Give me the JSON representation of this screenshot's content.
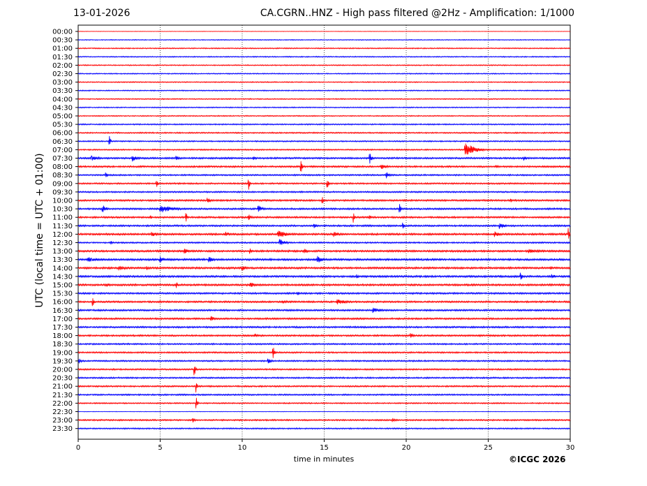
{
  "header": {
    "date": "13-01-2026",
    "title": "CA.CGRN..HNZ - High pass filtered @2Hz - Amplification: 1/1000"
  },
  "footer": {
    "copyright": "©ICGC 2026"
  },
  "colors": {
    "red_trace": "#ff0000",
    "blue_trace": "#0000ff",
    "grid": "#000000"
  },
  "chart_data": {
    "type": "line",
    "title": "CA.CGRN..HNZ - High pass filtered @2Hz - Amplification: 1/1000",
    "xlabel": "time in minutes",
    "ylabel": "UTC (local time = UTC + 01:00)",
    "xlim": [
      0,
      30
    ],
    "x_ticks": [
      "0",
      "5",
      "10",
      "15",
      "20",
      "25",
      "30"
    ],
    "x_grid": "dotted vertical lines at 5, 10, 15, 20, 25",
    "row_labels": [
      "00:00",
      "00:30",
      "01:00",
      "01:30",
      "02:00",
      "02:30",
      "03:00",
      "03:30",
      "04:00",
      "04:30",
      "05:00",
      "05:30",
      "06:00",
      "06:30",
      "07:00",
      "07:30",
      "08:00",
      "08:30",
      "09:00",
      "09:30",
      "10:00",
      "10:30",
      "11:00",
      "11:30",
      "12:00",
      "12:30",
      "13:00",
      "13:30",
      "14:00",
      "14:30",
      "15:00",
      "15:30",
      "16:00",
      "16:30",
      "17:00",
      "17:30",
      "18:00",
      "18:30",
      "19:00",
      "19:30",
      "20:00",
      "20:30",
      "21:00",
      "21:30",
      "22:00",
      "22:30",
      "23:00",
      "23:30"
    ],
    "row_colors": "alternating red / blue starting with red at 00:00",
    "noise_level": [
      0.2,
      0.4,
      0.5,
      0.5,
      0.5,
      0.5,
      0.5,
      0.5,
      0.5,
      0.5,
      0.5,
      0.6,
      0.6,
      0.6,
      0.6,
      0.8,
      0.8,
      0.7,
      0.7,
      0.7,
      0.8,
      0.8,
      0.8,
      0.8,
      0.9,
      0.7,
      0.9,
      0.9,
      0.9,
      0.9,
      0.9,
      0.8,
      0.8,
      0.8,
      0.8,
      0.8,
      0.8,
      0.7,
      0.7,
      0.7,
      0.7,
      0.7,
      0.7,
      0.7,
      0.6,
      0.25,
      0.7,
      0.6
    ],
    "events": [
      {
        "row": 14,
        "minute": 23.6,
        "amplitude": 10,
        "duration": 1.8
      },
      {
        "row": 13,
        "minute": 1.9,
        "amplitude": 9,
        "duration": 0.2
      },
      {
        "row": 15,
        "minute": 0.8,
        "amplitude": 4,
        "duration": 1.5
      },
      {
        "row": 15,
        "minute": 3.3,
        "amplitude": 5,
        "duration": 1.2
      },
      {
        "row": 15,
        "minute": 6.0,
        "amplitude": 4,
        "duration": 0.5
      },
      {
        "row": 15,
        "minute": 10.7,
        "amplitude": 4,
        "duration": 0.5
      },
      {
        "row": 15,
        "minute": 17.8,
        "amplitude": 8,
        "duration": 0.3
      },
      {
        "row": 15,
        "minute": 27.2,
        "amplitude": 4,
        "duration": 0.5
      },
      {
        "row": 16,
        "minute": 13.6,
        "amplitude": 9,
        "duration": 0.2
      },
      {
        "row": 16,
        "minute": 18.5,
        "amplitude": 4,
        "duration": 1.4
      },
      {
        "row": 16,
        "minute": 25.5,
        "amplitude": 3,
        "duration": 0.5
      },
      {
        "row": 17,
        "minute": 1.7,
        "amplitude": 4,
        "duration": 0.4
      },
      {
        "row": 17,
        "minute": 18.8,
        "amplitude": 5,
        "duration": 0.6
      },
      {
        "row": 18,
        "minute": 4.8,
        "amplitude": 6,
        "duration": 0.2
      },
      {
        "row": 18,
        "minute": 10.4,
        "amplitude": 10,
        "duration": 0.2
      },
      {
        "row": 18,
        "minute": 15.2,
        "amplitude": 9,
        "duration": 0.2
      },
      {
        "row": 20,
        "minute": 7.9,
        "amplitude": 4,
        "duration": 0.6
      },
      {
        "row": 20,
        "minute": 14.9,
        "amplitude": 6,
        "duration": 0.2
      },
      {
        "row": 20,
        "minute": 26.4,
        "amplitude": 4,
        "duration": 0.2
      },
      {
        "row": 21,
        "minute": 1.5,
        "amplitude": 6,
        "duration": 0.8
      },
      {
        "row": 21,
        "minute": 5.0,
        "amplitude": 6,
        "duration": 2.5
      },
      {
        "row": 21,
        "minute": 11.0,
        "amplitude": 5,
        "duration": 0.8
      },
      {
        "row": 21,
        "minute": 19.6,
        "amplitude": 10,
        "duration": 0.2
      },
      {
        "row": 22,
        "minute": 4.4,
        "amplitude": 3,
        "duration": 0.3
      },
      {
        "row": 22,
        "minute": 6.6,
        "amplitude": 6,
        "duration": 0.2
      },
      {
        "row": 22,
        "minute": 10.4,
        "amplitude": 5,
        "duration": 0.5
      },
      {
        "row": 22,
        "minute": 16.8,
        "amplitude": 8,
        "duration": 0.2
      },
      {
        "row": 22,
        "minute": 17.8,
        "amplitude": 3,
        "duration": 0.3
      },
      {
        "row": 23,
        "minute": 14.4,
        "amplitude": 4,
        "duration": 0.4
      },
      {
        "row": 23,
        "minute": 19.8,
        "amplitude": 5,
        "duration": 0.3
      },
      {
        "row": 23,
        "minute": 25.7,
        "amplitude": 5,
        "duration": 1.0
      },
      {
        "row": 24,
        "minute": 4.5,
        "amplitude": 4,
        "duration": 1.0
      },
      {
        "row": 24,
        "minute": 9.0,
        "amplitude": 4,
        "duration": 0.8
      },
      {
        "row": 24,
        "minute": 12.2,
        "amplitude": 6,
        "duration": 1.6
      },
      {
        "row": 24,
        "minute": 15.6,
        "amplitude": 4,
        "duration": 1.2
      },
      {
        "row": 24,
        "minute": 25.4,
        "amplitude": 4,
        "duration": 1.2
      },
      {
        "row": 24,
        "minute": 29.9,
        "amplitude": 9,
        "duration": 0.2
      },
      {
        "row": 25,
        "minute": 2.0,
        "amplitude": 3,
        "duration": 0.4
      },
      {
        "row": 25,
        "minute": 12.3,
        "amplitude": 5,
        "duration": 1.2
      },
      {
        "row": 26,
        "minute": 6.5,
        "amplitude": 4,
        "duration": 1.0
      },
      {
        "row": 26,
        "minute": 10.5,
        "amplitude": 4,
        "duration": 0.3
      },
      {
        "row": 26,
        "minute": 13.8,
        "amplitude": 4,
        "duration": 0.6
      },
      {
        "row": 26,
        "minute": 27.5,
        "amplitude": 3,
        "duration": 2.4
      },
      {
        "row": 27,
        "minute": 0.6,
        "amplitude": 4,
        "duration": 1.8
      },
      {
        "row": 27,
        "minute": 5.0,
        "amplitude": 5,
        "duration": 0.8
      },
      {
        "row": 27,
        "minute": 8.0,
        "amplitude": 4,
        "duration": 1.0
      },
      {
        "row": 27,
        "minute": 14.6,
        "amplitude": 6,
        "duration": 0.8
      },
      {
        "row": 28,
        "minute": 2.5,
        "amplitude": 4,
        "duration": 1.2
      },
      {
        "row": 28,
        "minute": 4.2,
        "amplitude": 3,
        "duration": 0.5
      },
      {
        "row": 28,
        "minute": 10.0,
        "amplitude": 4,
        "duration": 0.8
      },
      {
        "row": 28,
        "minute": 28.8,
        "amplitude": 4,
        "duration": 0.4
      },
      {
        "row": 29,
        "minute": 17.0,
        "amplitude": 4,
        "duration": 0.4
      },
      {
        "row": 29,
        "minute": 27.0,
        "amplitude": 8,
        "duration": 0.2
      },
      {
        "row": 29,
        "minute": 28.9,
        "amplitude": 4,
        "duration": 0.6
      },
      {
        "row": 30,
        "minute": 1.8,
        "amplitude": 3,
        "duration": 0.6
      },
      {
        "row": 30,
        "minute": 10.5,
        "amplitude": 4,
        "duration": 1.4
      },
      {
        "row": 30,
        "minute": 6.0,
        "amplitude": 5,
        "duration": 0.2
      },
      {
        "row": 31,
        "minute": 13.4,
        "amplitude": 3,
        "duration": 0.4
      },
      {
        "row": 32,
        "minute": 0.9,
        "amplitude": 8,
        "duration": 0.2
      },
      {
        "row": 32,
        "minute": 12.5,
        "amplitude": 3,
        "duration": 1.2
      },
      {
        "row": 32,
        "minute": 15.8,
        "amplitude": 4,
        "duration": 2.0
      },
      {
        "row": 33,
        "minute": 18.0,
        "amplitude": 4,
        "duration": 1.6
      },
      {
        "row": 34,
        "minute": 8.1,
        "amplitude": 4,
        "duration": 0.7
      },
      {
        "row": 36,
        "minute": 10.8,
        "amplitude": 3,
        "duration": 0.4
      },
      {
        "row": 36,
        "minute": 20.3,
        "amplitude": 5,
        "duration": 0.4
      },
      {
        "row": 38,
        "minute": 11.9,
        "amplitude": 10,
        "duration": 0.2
      },
      {
        "row": 39,
        "minute": 0.1,
        "amplitude": 4,
        "duration": 0.3
      },
      {
        "row": 39,
        "minute": 11.6,
        "amplitude": 4,
        "duration": 0.6
      },
      {
        "row": 40,
        "minute": 7.1,
        "amplitude": 9,
        "duration": 0.2
      },
      {
        "row": 42,
        "minute": 7.2,
        "amplitude": 10,
        "duration": 0.2
      },
      {
        "row": 44,
        "minute": 7.2,
        "amplitude": 10,
        "duration": 0.2
      },
      {
        "row": 46,
        "minute": 7.0,
        "amplitude": 4,
        "duration": 0.4
      },
      {
        "row": 46,
        "minute": 19.2,
        "amplitude": 3,
        "duration": 0.6
      }
    ]
  }
}
